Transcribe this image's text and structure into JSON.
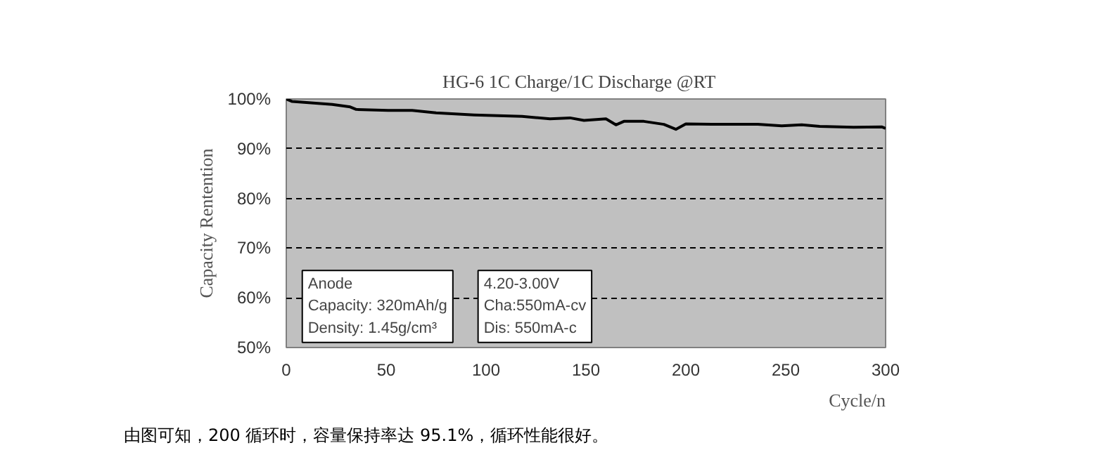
{
  "chart_data": {
    "type": "line",
    "title": "HG-6    1C Charge/1C Discharge @RT",
    "xlabel": "Cycle/n",
    "ylabel": "Capacity Rentention",
    "x": [
      0,
      3,
      23,
      32,
      35,
      51,
      63,
      75,
      94,
      118,
      132,
      142,
      149,
      160,
      165,
      169,
      179,
      189,
      195,
      200,
      213,
      236,
      248,
      258,
      267,
      284,
      298,
      300
    ],
    "series": [
      {
        "color": "#000000",
        "values": [
          100,
          99.5,
          98.9,
          98.4,
          97.9,
          97.7,
          97.7,
          97.2,
          96.8,
          96.5,
          96.0,
          96.2,
          95.7,
          96.0,
          94.8,
          95.5,
          95.5,
          94.9,
          93.9,
          95.0,
          94.9,
          94.9,
          94.6,
          94.8,
          94.5,
          94.3,
          94.4,
          94.1
        ]
      }
    ],
    "xlim": [
      0,
      300
    ],
    "xticks": [
      0,
      50,
      100,
      150,
      200,
      250,
      300
    ],
    "ylim": [
      50,
      100
    ],
    "yticks": [
      {
        "value": 50,
        "label": "50%"
      },
      {
        "value": 60,
        "label": "60%"
      },
      {
        "value": 70,
        "label": "70%"
      },
      {
        "value": 80,
        "label": "80%"
      },
      {
        "value": 90,
        "label": "90%"
      },
      {
        "value": 100,
        "label": "100%"
      }
    ],
    "grid": "y",
    "annotations": [
      "Anode\nCapacity: 320mAh/g\nDensity: 1.45g/cm³",
      "4.20-3.00V\nCha:550mA-cv\nDis: 550mA-c",
      "由图可知，200 循环时，容量保持率达 95.1%，循环性能很好。"
    ]
  }
}
